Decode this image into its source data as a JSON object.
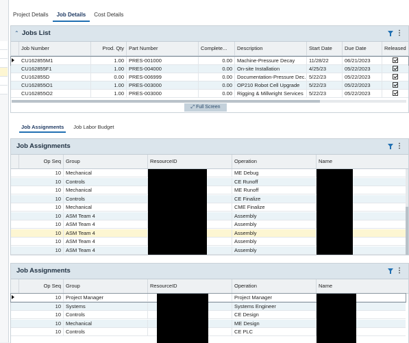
{
  "tabs": [
    {
      "label": "Project Details"
    },
    {
      "label": "Job Details"
    },
    {
      "label": "Cost Details"
    }
  ],
  "jobs_list": {
    "title": "Jobs List",
    "columns": [
      "Job Number",
      "Prod. Qty",
      "Part Number",
      "Complete...",
      "Description",
      "Start Date",
      "Due Date",
      "Released"
    ],
    "rows": [
      {
        "job": "CU162855M1",
        "qty": "1.00",
        "part": "PRES-001000",
        "complete": "0.00",
        "desc": "Machine-Pressure Decay",
        "start": "11/28/22",
        "due": "06/21/2023"
      },
      {
        "job": "CU162855F1",
        "qty": "1.00",
        "part": "PRES-004000",
        "complete": "0.00",
        "desc": "On-site Installation",
        "start": "4/25/23",
        "due": "05/22/2023"
      },
      {
        "job": "CU162855D",
        "qty": "0.00",
        "part": "PRES-006999",
        "complete": "0.00",
        "desc": "Documentation-Pressure Dec...",
        "start": "5/22/23",
        "due": "05/22/2023"
      },
      {
        "job": "CU162855O1",
        "qty": "1.00",
        "part": "PRES-003000",
        "complete": "0.00",
        "desc": "OP210 Robot Cell Upgrade",
        "start": "5/22/23",
        "due": "05/22/2023"
      },
      {
        "job": "CU162855O2",
        "qty": "1.00",
        "part": "PRES-003000",
        "complete": "0.00",
        "desc": "Rigging & Millwright Services",
        "start": "5/22/23",
        "due": "05/22/2023"
      }
    ],
    "full_screen_label": "Full Screen"
  },
  "subtabs": [
    {
      "label": "Job Assignments"
    },
    {
      "label": "Job Labor Budget"
    }
  ],
  "assign1": {
    "title": "Job Assignments",
    "columns": [
      "Op Seq",
      "Group",
      "ResourceID",
      "Operation",
      "Name"
    ],
    "rows": [
      {
        "seq": "10",
        "group": "Mechanical",
        "op": "ME Debug"
      },
      {
        "seq": "10",
        "group": "Controls",
        "op": "CE Runoff"
      },
      {
        "seq": "10",
        "group": "Mechanical",
        "op": "ME Runoff"
      },
      {
        "seq": "10",
        "group": "Controls",
        "op": "CE Finalize"
      },
      {
        "seq": "10",
        "group": "Mechanical",
        "op": "CME Finalize"
      },
      {
        "seq": "10",
        "group": "ASM Team 4",
        "op": "Assembly"
      },
      {
        "seq": "10",
        "group": "ASM Team 4",
        "op": "Assembly"
      },
      {
        "seq": "10",
        "group": "ASM Team 4",
        "op": "Assembly"
      },
      {
        "seq": "10",
        "group": "ASM Team 4",
        "op": "Assembly"
      },
      {
        "seq": "10",
        "group": "ASM Team 4",
        "op": "Assembly"
      }
    ]
  },
  "assign2": {
    "title": "Job Assignments",
    "columns": [
      "Op Seq",
      "Group",
      "ResourceID",
      "Operation",
      "Name"
    ],
    "rows": [
      {
        "seq": "10",
        "group": "Project Manager",
        "op": "Project Manager"
      },
      {
        "seq": "10",
        "group": "Systems",
        "op": "Systems Engineer"
      },
      {
        "seq": "10",
        "group": "Controls",
        "op": "CE Design"
      },
      {
        "seq": "10",
        "group": "Mechanical",
        "op": "ME Design"
      },
      {
        "seq": "10",
        "group": "Controls",
        "op": "CE PLC"
      }
    ]
  }
}
